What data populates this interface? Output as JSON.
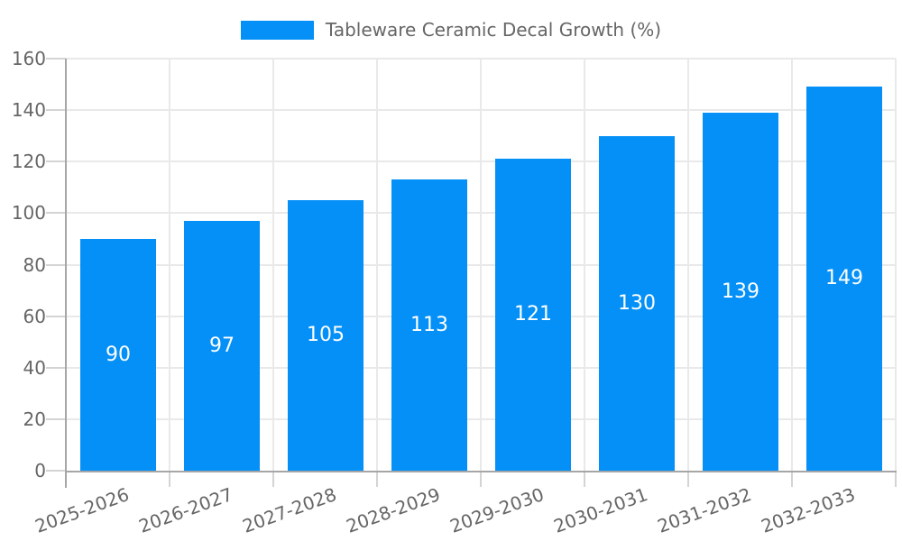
{
  "chart_data": {
    "type": "bar",
    "title": "Tableware Ceramic Decal Growth (%)",
    "categories": [
      "2025-2026",
      "2026-2027",
      "2027-2028",
      "2028-2029",
      "2029-2030",
      "2030-2031",
      "2031-2032",
      "2032-2033"
    ],
    "values": [
      90,
      97,
      105,
      113,
      121,
      130,
      139,
      149
    ],
    "ylim": [
      0,
      160
    ],
    "ytick_step": 20,
    "ytick_labels": [
      "0",
      "20",
      "40",
      "60",
      "80",
      "100",
      "120",
      "140",
      "160"
    ],
    "grid": true,
    "legend_position": "top",
    "value_labels_inside_bars": true,
    "colors": {
      "bar": "#0590f7",
      "grid": "#e9e9e9",
      "tick": "#d4d4d4",
      "axis": "#a6a6a6",
      "label_text": "#666666",
      "value_text": "#ffffff",
      "background": "#ffffff"
    }
  }
}
